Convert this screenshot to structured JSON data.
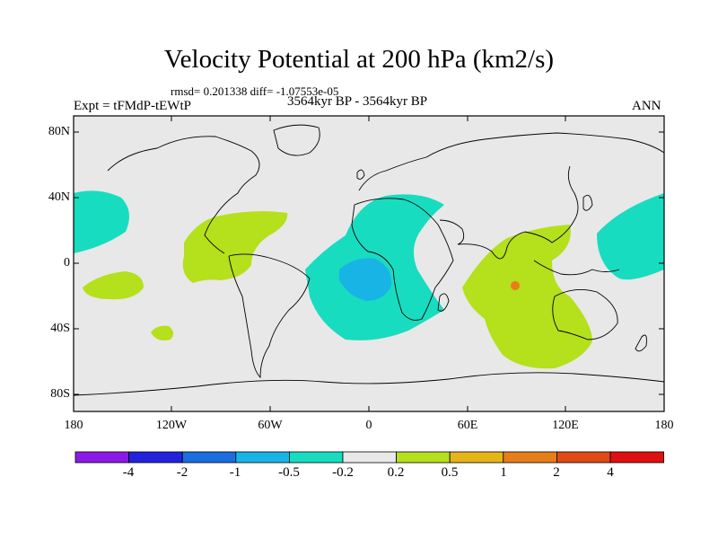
{
  "title": "Velocity Potential at 200 hPa (km2/s)",
  "stats": "rmsd= 0.201338 diff= -1.07553e-05",
  "experiment": "Expt = tFMdP-tEWtP",
  "period": "3564kyr BP - 3564kyr BP",
  "season": "ANN",
  "lat_labels": [
    "80N",
    "40N",
    "0",
    "40S",
    "80S"
  ],
  "lon_labels": [
    "180",
    "120W",
    "60W",
    "0",
    "60E",
    "120E",
    "180"
  ],
  "colorbar": {
    "labels": [
      "-4",
      "-2",
      "-1",
      "-0.5",
      "-0.2",
      "0.2",
      "0.5",
      "1",
      "2",
      "4"
    ],
    "colors": [
      "#8c1ae6",
      "#2222dd",
      "#1b6ee0",
      "#18b4e6",
      "#18dcc0",
      "#e8e8e8",
      "#b4e01c",
      "#e6b418",
      "#e67e1a",
      "#e04a14",
      "#e01010"
    ]
  },
  "colors": {
    "neutral": "#e8e8e8",
    "neg_light": "#18dcc0",
    "neg_mid": "#18b4e6",
    "pos_light": "#b4e01c",
    "pos_mid": "#e67e1a"
  }
}
